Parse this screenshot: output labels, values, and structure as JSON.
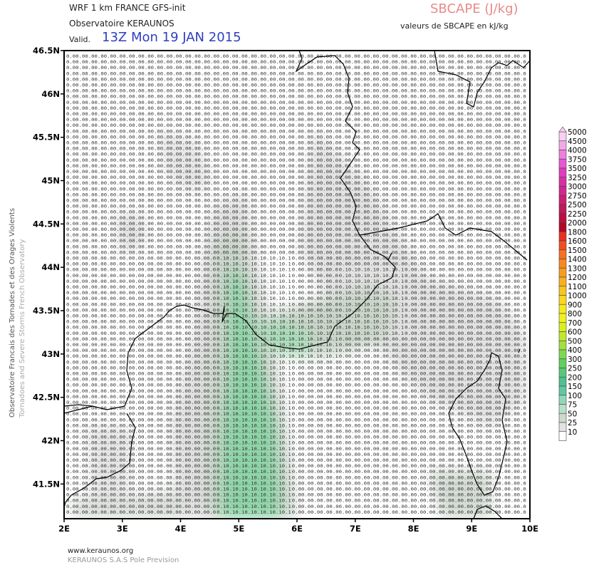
{
  "header": {
    "line1": "WRF 1 km FRANCE  GFS-init",
    "line2": "Observatoire KERAUNOS",
    "valid_label": "Valid.",
    "valid_time": "13Z Mon 19 JAN 2015"
  },
  "variable": {
    "title": "SBCAPE (J/kg)",
    "subtitle": "valeurs de SBCAPE en kJ/kg"
  },
  "side_text": {
    "line1": "Observatoire Francais des Tornades et des Orages Violents",
    "line2": "Tornadoes and Severe Storms French Observatory"
  },
  "footer": {
    "line1": "www.keraunos.org",
    "line2": "KERAUNOS S.A.S Pole Prevision"
  },
  "map": {
    "lat_range": [
      41.1,
      46.5
    ],
    "lon_range": [
      2,
      10
    ],
    "lat_ticks": [
      "46.5N",
      "46N",
      "45.5N",
      "45N",
      "44.5N",
      "44N",
      "43.5N",
      "43N",
      "42.5N",
      "42N",
      "41.5N"
    ],
    "lon_ticks": [
      "2E",
      "3E",
      "4E",
      "5E",
      "6E",
      "7E",
      "8E",
      "9E",
      "10E"
    ],
    "grid_values": [
      "0.0",
      "0.1"
    ],
    "colors": {
      "background": "#ffffff",
      "border": "#000000",
      "coast": "#000000",
      "shade_light": "#e0e0e0",
      "shade_mid": "#cdd8cd",
      "shade_green": "#8fd4a8"
    }
  },
  "colorbar": {
    "levels": [
      "5000",
      "4500",
      "4000",
      "3750",
      "3500",
      "3250",
      "3000",
      "2750",
      "2500",
      "2250",
      "2000",
      "1800",
      "1600",
      "1500",
      "1400",
      "1300",
      "1200",
      "1100",
      "1000",
      "900",
      "800",
      "700",
      "600",
      "500",
      "400",
      "300",
      "250",
      "200",
      "150",
      "100",
      "75",
      "50",
      "25",
      "10"
    ],
    "colors": [
      "#f8d0f0",
      "#f3a8e8",
      "#ee80de",
      "#e858d2",
      "#e03cbc",
      "#d830a4",
      "#d02890",
      "#c82070",
      "#c01858",
      "#b81040",
      "#b00828",
      "#e83020",
      "#f05020",
      "#f87020",
      "#f88820",
      "#f89c20",
      "#f8b020",
      "#f8c420",
      "#f8d820",
      "#f8e820",
      "#f0f020",
      "#d8f020",
      "#c0e830",
      "#a0e040",
      "#80d850",
      "#60d060",
      "#58c878",
      "#50c090",
      "#60c8a0",
      "#90d8b8",
      "#b8e0c8",
      "#cfd8cf",
      "#e2e2e2",
      "#ffffff"
    ]
  }
}
